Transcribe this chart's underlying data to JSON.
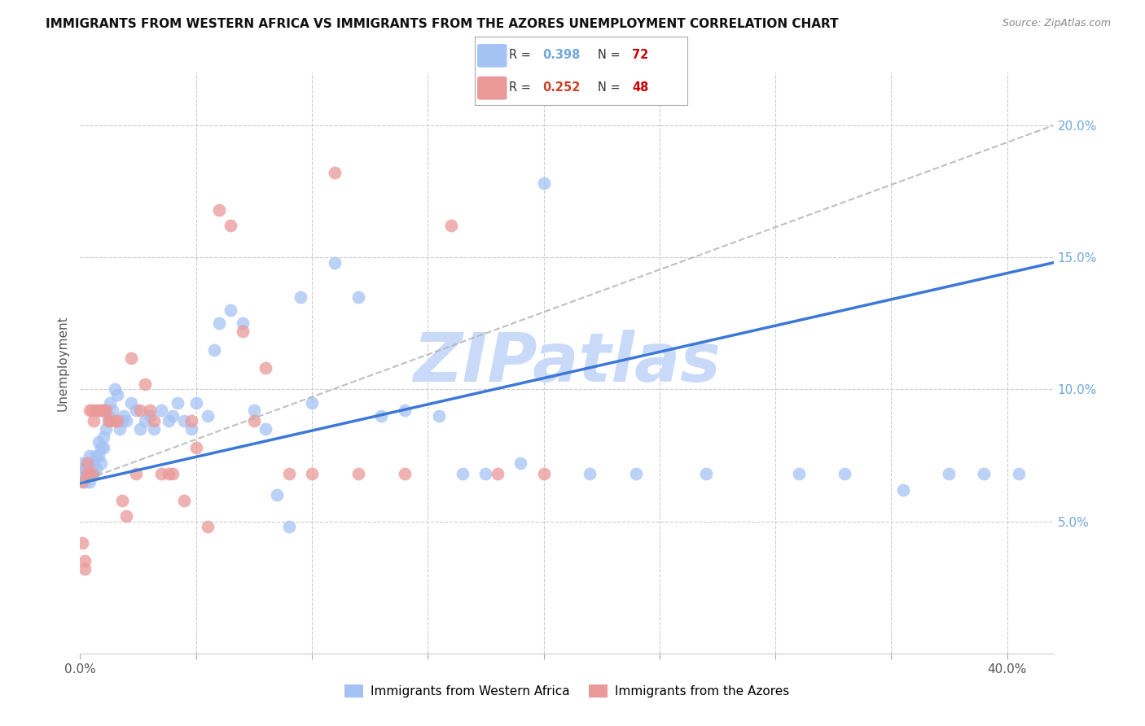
{
  "title": "IMMIGRANTS FROM WESTERN AFRICA VS IMMIGRANTS FROM THE AZORES UNEMPLOYMENT CORRELATION CHART",
  "source": "Source: ZipAtlas.com",
  "ylabel_label": "Unemployment",
  "xlim": [
    0.0,
    0.42
  ],
  "ylim": [
    0.0,
    0.22
  ],
  "color_blue": "#a4c2f4",
  "color_pink": "#ea9999",
  "color_line_blue": "#3c78d8",
  "color_line_pink": "#cccccc",
  "color_grid": "#cccccc",
  "color_axis_blue": "#6fa8dc",
  "watermark_text": "ZIPatlas",
  "watermark_color": "#c9daf8",
  "legend_R_blue": "0.398",
  "legend_N_blue": "72",
  "legend_R_pink": "0.252",
  "legend_N_pink": "48",
  "legend_label_blue": "Immigrants from Western Africa",
  "legend_label_pink": "Immigrants from the Azores",
  "blue_x": [
    0.001,
    0.001,
    0.002,
    0.002,
    0.003,
    0.003,
    0.004,
    0.004,
    0.005,
    0.005,
    0.006,
    0.006,
    0.007,
    0.007,
    0.008,
    0.008,
    0.009,
    0.009,
    0.01,
    0.01,
    0.011,
    0.012,
    0.013,
    0.014,
    0.015,
    0.016,
    0.017,
    0.018,
    0.019,
    0.02,
    0.022,
    0.024,
    0.026,
    0.028,
    0.03,
    0.032,
    0.035,
    0.038,
    0.04,
    0.042,
    0.045,
    0.048,
    0.05,
    0.055,
    0.058,
    0.06,
    0.065,
    0.07,
    0.075,
    0.08,
    0.085,
    0.09,
    0.095,
    0.1,
    0.11,
    0.12,
    0.13,
    0.14,
    0.155,
    0.165,
    0.175,
    0.19,
    0.2,
    0.22,
    0.24,
    0.27,
    0.31,
    0.33,
    0.355,
    0.375,
    0.39,
    0.405
  ],
  "blue_y": [
    0.072,
    0.068,
    0.065,
    0.07,
    0.068,
    0.072,
    0.065,
    0.075,
    0.068,
    0.07,
    0.072,
    0.068,
    0.075,
    0.07,
    0.08,
    0.075,
    0.078,
    0.072,
    0.082,
    0.078,
    0.085,
    0.09,
    0.095,
    0.092,
    0.1,
    0.098,
    0.085,
    0.088,
    0.09,
    0.088,
    0.095,
    0.092,
    0.085,
    0.088,
    0.09,
    0.085,
    0.092,
    0.088,
    0.09,
    0.095,
    0.088,
    0.085,
    0.095,
    0.09,
    0.115,
    0.125,
    0.13,
    0.125,
    0.092,
    0.085,
    0.06,
    0.048,
    0.135,
    0.095,
    0.148,
    0.135,
    0.09,
    0.092,
    0.09,
    0.068,
    0.068,
    0.072,
    0.178,
    0.068,
    0.068,
    0.068,
    0.068,
    0.068,
    0.062,
    0.068,
    0.068,
    0.068
  ],
  "pink_x": [
    0.001,
    0.001,
    0.002,
    0.002,
    0.003,
    0.003,
    0.004,
    0.004,
    0.005,
    0.005,
    0.006,
    0.007,
    0.008,
    0.009,
    0.01,
    0.011,
    0.012,
    0.013,
    0.015,
    0.016,
    0.018,
    0.02,
    0.022,
    0.024,
    0.026,
    0.028,
    0.03,
    0.032,
    0.035,
    0.038,
    0.04,
    0.045,
    0.048,
    0.05,
    0.055,
    0.06,
    0.065,
    0.07,
    0.075,
    0.08,
    0.09,
    0.1,
    0.11,
    0.12,
    0.14,
    0.16,
    0.18,
    0.2
  ],
  "pink_y": [
    0.065,
    0.042,
    0.032,
    0.035,
    0.068,
    0.072,
    0.068,
    0.092,
    0.068,
    0.092,
    0.088,
    0.092,
    0.092,
    0.092,
    0.092,
    0.092,
    0.088,
    0.088,
    0.088,
    0.088,
    0.058,
    0.052,
    0.112,
    0.068,
    0.092,
    0.102,
    0.092,
    0.088,
    0.068,
    0.068,
    0.068,
    0.058,
    0.088,
    0.078,
    0.048,
    0.168,
    0.162,
    0.122,
    0.088,
    0.108,
    0.068,
    0.068,
    0.182,
    0.068,
    0.068,
    0.162,
    0.068,
    0.068
  ],
  "blue_line_y_start": 0.0645,
  "blue_line_y_end": 0.148,
  "pink_line_y_start": 0.065,
  "pink_line_y_end": 0.2
}
